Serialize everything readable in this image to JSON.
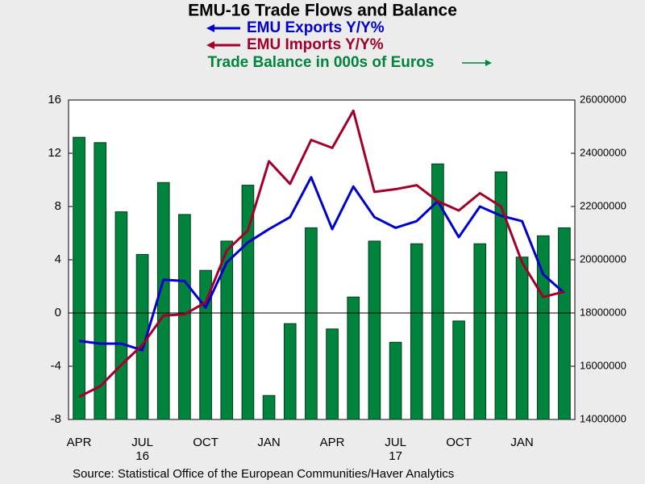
{
  "chart_data": {
    "type": "combo",
    "title": "EMU-16 Trade Flows and Balance",
    "source": "Source:  Statistical Office of the European Communities/Haver Analytics",
    "categories": [
      "APR",
      null,
      null,
      "JUL",
      null,
      null,
      "OCT",
      null,
      null,
      "JAN",
      null,
      null,
      "APR",
      null,
      null,
      "JUL",
      null,
      null,
      "OCT",
      null,
      null,
      "JAN",
      null,
      null
    ],
    "category_years": [
      null,
      null,
      null,
      "16",
      null,
      null,
      null,
      null,
      null,
      null,
      null,
      null,
      null,
      null,
      null,
      "17",
      null,
      null,
      null,
      null,
      null,
      null,
      null,
      null
    ],
    "ylim": [
      -8,
      16
    ],
    "yticks": [
      -8,
      -4,
      0,
      4,
      8,
      12,
      16
    ],
    "y2lim": [
      14000000,
      26000000
    ],
    "y2ticks": [
      14000000,
      16000000,
      18000000,
      20000000,
      22000000,
      24000000,
      26000000
    ],
    "zero_line": true,
    "series": [
      {
        "name": "Trade Balance in 000s of Euros",
        "type": "bar",
        "axis": "y2",
        "color": "#00843d",
        "values": [
          24600000,
          24400000,
          21800000,
          20200000,
          22900000,
          21700000,
          19600000,
          20700000,
          22800000,
          14900000,
          17600000,
          21200000,
          17400000,
          18600000,
          20700000,
          16900000,
          20600000,
          23600000,
          17700000,
          20600000,
          23300000,
          20100000,
          20900000,
          21200000
        ]
      },
      {
        "name": "EMU Exports Y/Y%",
        "type": "line",
        "color": "#0000cc",
        "values": [
          -2.1,
          -2.3,
          -2.3,
          -2.8,
          2.5,
          2.4,
          0.4,
          3.8,
          5.3,
          6.3,
          7.2,
          10.2,
          6.3,
          9.5,
          7.2,
          6.4,
          6.9,
          8.4,
          5.7,
          8.0,
          7.3,
          6.9,
          2.9,
          1.5
        ]
      },
      {
        "name": "EMU Imports Y/Y%",
        "type": "line",
        "color": "#a0002a",
        "values": [
          -6.3,
          -5.5,
          -3.9,
          -2.4,
          -0.2,
          -0.1,
          0.8,
          4.7,
          6.2,
          11.4,
          9.7,
          13.0,
          12.4,
          15.2,
          9.1,
          9.3,
          9.6,
          8.4,
          7.7,
          9.0,
          8.0,
          3.8,
          1.2,
          1.6
        ]
      }
    ]
  }
}
